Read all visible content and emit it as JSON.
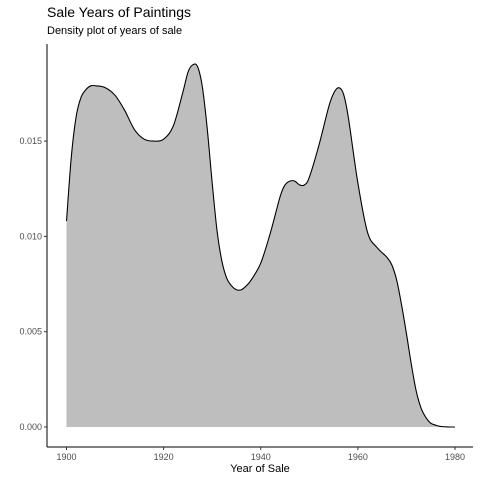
{
  "chart_data": {
    "type": "area",
    "title": "Sale Years of Paintings",
    "subtitle": "Density plot of years of sale",
    "xlabel": "Year of Sale",
    "ylabel": "",
    "xlim": [
      1900,
      1980
    ],
    "ylim": [
      0,
      0.0195
    ],
    "x_ticks": [
      1900,
      1920,
      1940,
      1960,
      1980
    ],
    "y_ticks": [
      0.0,
      0.005,
      0.01,
      0.015
    ],
    "y_tick_labels": [
      "0.000",
      "0.005",
      "0.010",
      "0.015"
    ],
    "grid": false,
    "legend": "none",
    "fill_color": "#bebebe",
    "line_color": "#000000",
    "series": [
      {
        "x": [
          1900,
          1901,
          1902,
          1903,
          1904,
          1905,
          1906,
          1908,
          1910,
          1912,
          1914,
          1916,
          1918,
          1920,
          1922,
          1924,
          1925,
          1926,
          1927,
          1928,
          1929,
          1930,
          1931,
          1932,
          1933,
          1934,
          1935,
          1936,
          1937,
          1938,
          1940,
          1942,
          1944,
          1945,
          1946,
          1947,
          1948,
          1949,
          1950,
          1952,
          1954,
          1955,
          1956,
          1957,
          1958,
          1960,
          1962,
          1964,
          1966,
          1967,
          1968,
          1969,
          1970,
          1971,
          1972,
          1973,
          1974,
          1975,
          1976,
          1977,
          1978,
          1979,
          1980
        ],
        "y": [
          0.0108,
          0.0142,
          0.0163,
          0.0173,
          0.0177,
          0.0179,
          0.0179,
          0.0178,
          0.0174,
          0.0166,
          0.0156,
          0.0151,
          0.015,
          0.0151,
          0.0158,
          0.0176,
          0.0186,
          0.019,
          0.0189,
          0.0178,
          0.0156,
          0.0128,
          0.0103,
          0.0087,
          0.0078,
          0.0074,
          0.0072,
          0.0072,
          0.0074,
          0.0077,
          0.0086,
          0.0102,
          0.0121,
          0.0127,
          0.0129,
          0.0129,
          0.0127,
          0.0127,
          0.0131,
          0.0148,
          0.0168,
          0.0175,
          0.0178,
          0.0175,
          0.0163,
          0.0128,
          0.0102,
          0.0094,
          0.0089,
          0.0085,
          0.0077,
          0.0064,
          0.0049,
          0.0033,
          0.0019,
          0.001,
          0.0005,
          0.0002,
          0.0001,
          3e-05,
          1e-05,
          0.0,
          0.0
        ]
      }
    ]
  }
}
